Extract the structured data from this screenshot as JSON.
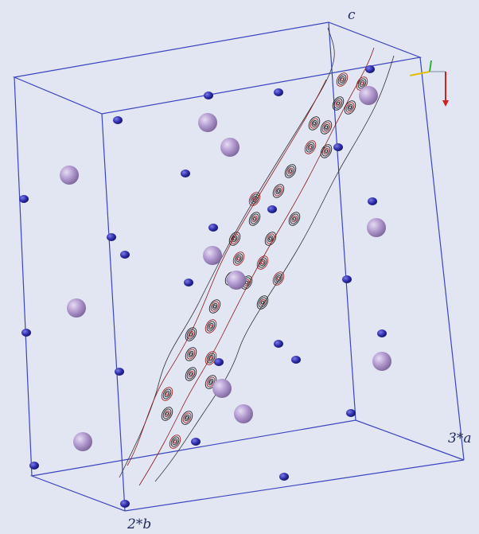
{
  "axis_labels": {
    "c": "c",
    "a": "3*a",
    "b": "2*b"
  }
}
